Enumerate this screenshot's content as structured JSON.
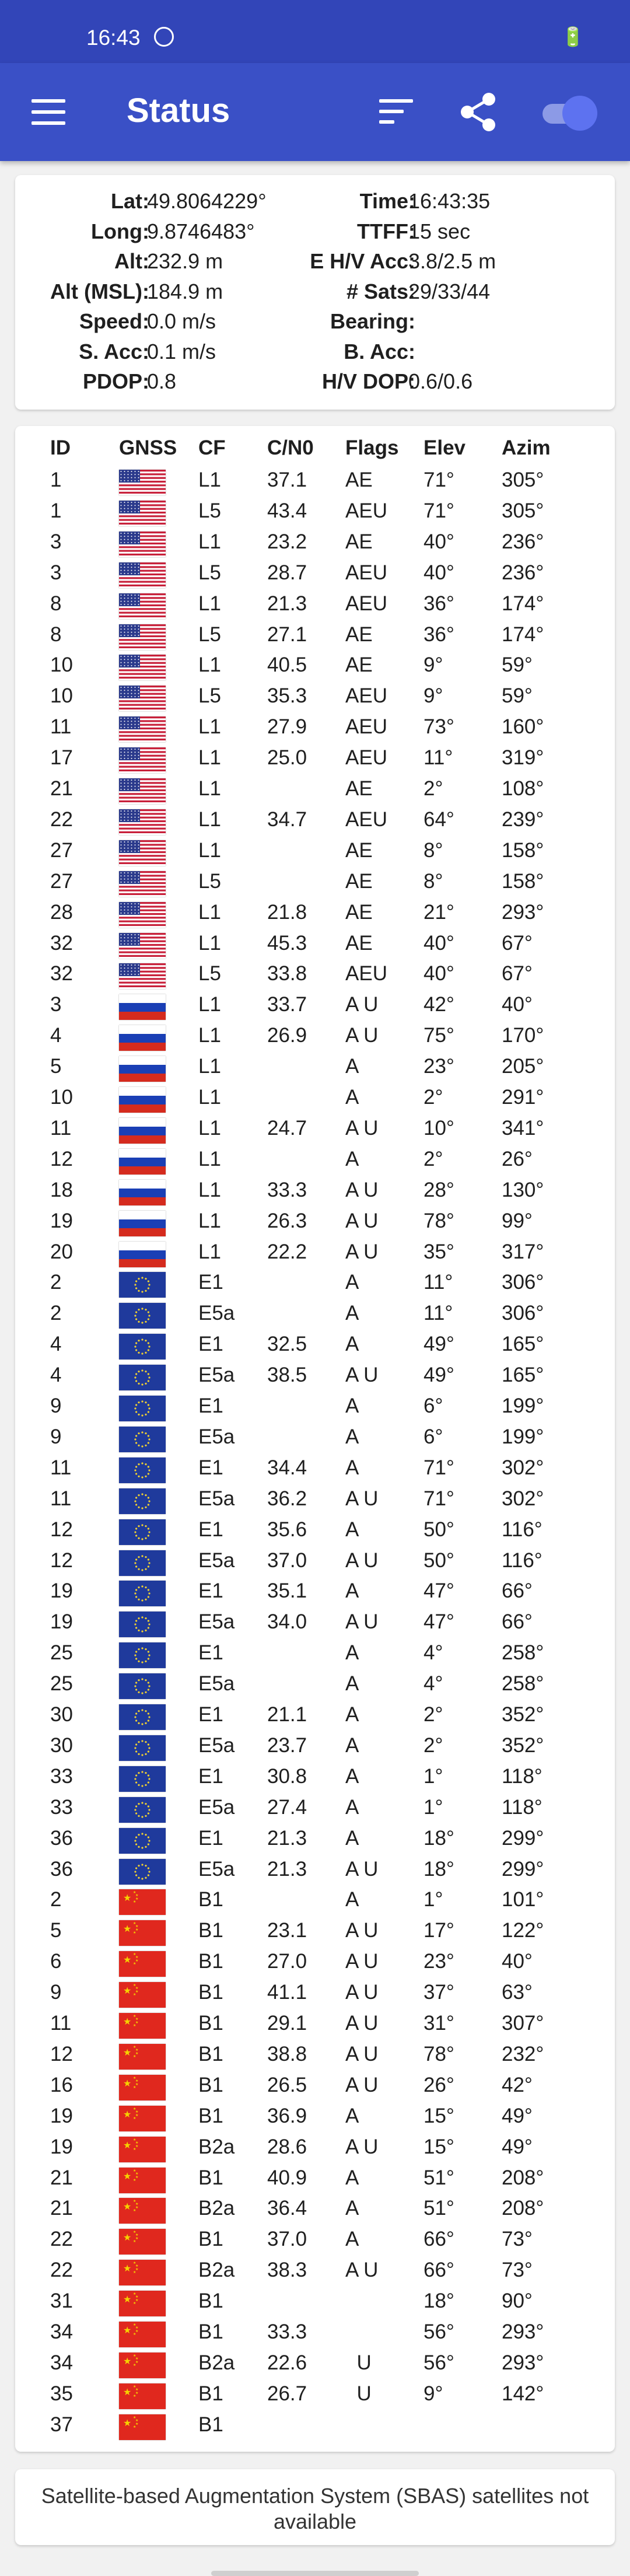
{
  "status_bar": {
    "time": "16:43",
    "battery": "93"
  },
  "app_bar": {
    "title": "Status",
    "toggle_on": true,
    "colors": {
      "bar": "#3a50c6",
      "status": "#3245b8",
      "toggle": "#5d72f0"
    }
  },
  "fix": {
    "rows": [
      {
        "label1": "Lat:",
        "value1": "49.8064229°",
        "label2": "Time:",
        "value2": "16:43:35"
      },
      {
        "label1": "Long:",
        "value1": "9.8746483°",
        "label2": "TTFF:",
        "value2": "15 sec"
      },
      {
        "label1": "Alt:",
        "value1": "232.9 m",
        "label2": "E H/V Acc:",
        "value2": "3.8/2.5 m"
      },
      {
        "label1": "Alt (MSL):",
        "value1": "184.9 m",
        "label2": "# Sats:",
        "value2": "29/33/44"
      },
      {
        "label1": "Speed:",
        "value1": "0.0 m/s",
        "label2": "Bearing:",
        "value2": ""
      },
      {
        "label1": "S. Acc:",
        "value1": "0.1 m/s",
        "label2": "B. Acc:",
        "value2": ""
      },
      {
        "label1": "PDOP:",
        "value1": "0.8",
        "label2": "H/V DOP:",
        "value2": "0.6/0.6"
      }
    ]
  },
  "satellites": {
    "headers": {
      "id": "ID",
      "gnss": "GNSS",
      "cf": "CF",
      "cn0": "C/N0",
      "flags": "Flags",
      "elev": "Elev",
      "azim": "Azim"
    },
    "rows": [
      {
        "id": "1",
        "gnss": "us-flag-icon",
        "cf": "L1",
        "cn0": "37.1",
        "flags": "AE",
        "elev": "71°",
        "azim": "305°"
      },
      {
        "id": "1",
        "gnss": "us-flag-icon",
        "cf": "L5",
        "cn0": "43.4",
        "flags": "AEU",
        "elev": "71°",
        "azim": "305°"
      },
      {
        "id": "3",
        "gnss": "us-flag-icon",
        "cf": "L1",
        "cn0": "23.2",
        "flags": "AE",
        "elev": "40°",
        "azim": "236°"
      },
      {
        "id": "3",
        "gnss": "us-flag-icon",
        "cf": "L5",
        "cn0": "28.7",
        "flags": "AEU",
        "elev": "40°",
        "azim": "236°"
      },
      {
        "id": "8",
        "gnss": "us-flag-icon",
        "cf": "L1",
        "cn0": "21.3",
        "flags": "AEU",
        "elev": "36°",
        "azim": "174°"
      },
      {
        "id": "8",
        "gnss": "us-flag-icon",
        "cf": "L5",
        "cn0": "27.1",
        "flags": "AE",
        "elev": "36°",
        "azim": "174°"
      },
      {
        "id": "10",
        "gnss": "us-flag-icon",
        "cf": "L1",
        "cn0": "40.5",
        "flags": "AE",
        "elev": "9°",
        "azim": "59°"
      },
      {
        "id": "10",
        "gnss": "us-flag-icon",
        "cf": "L5",
        "cn0": "35.3",
        "flags": "AEU",
        "elev": "9°",
        "azim": "59°"
      },
      {
        "id": "11",
        "gnss": "us-flag-icon",
        "cf": "L1",
        "cn0": "27.9",
        "flags": "AEU",
        "elev": "73°",
        "azim": "160°"
      },
      {
        "id": "17",
        "gnss": "us-flag-icon",
        "cf": "L1",
        "cn0": "25.0",
        "flags": "AEU",
        "elev": "11°",
        "azim": "319°"
      },
      {
        "id": "21",
        "gnss": "us-flag-icon",
        "cf": "L1",
        "cn0": "",
        "flags": "AE",
        "elev": "2°",
        "azim": "108°"
      },
      {
        "id": "22",
        "gnss": "us-flag-icon",
        "cf": "L1",
        "cn0": "34.7",
        "flags": "AEU",
        "elev": "64°",
        "azim": "239°"
      },
      {
        "id": "27",
        "gnss": "us-flag-icon",
        "cf": "L1",
        "cn0": "",
        "flags": "AE",
        "elev": "8°",
        "azim": "158°"
      },
      {
        "id": "27",
        "gnss": "us-flag-icon",
        "cf": "L5",
        "cn0": "",
        "flags": "AE",
        "elev": "8°",
        "azim": "158°"
      },
      {
        "id": "28",
        "gnss": "us-flag-icon",
        "cf": "L1",
        "cn0": "21.8",
        "flags": "AE",
        "elev": "21°",
        "azim": "293°"
      },
      {
        "id": "32",
        "gnss": "us-flag-icon",
        "cf": "L1",
        "cn0": "45.3",
        "flags": "AE",
        "elev": "40°",
        "azim": "67°"
      },
      {
        "id": "32",
        "gnss": "us-flag-icon",
        "cf": "L5",
        "cn0": "33.8",
        "flags": "AEU",
        "elev": "40°",
        "azim": "67°"
      },
      {
        "id": "3",
        "gnss": "russia-flag-icon",
        "cf": "L1",
        "cn0": "33.7",
        "flags": "A U",
        "elev": "42°",
        "azim": "40°"
      },
      {
        "id": "4",
        "gnss": "russia-flag-icon",
        "cf": "L1",
        "cn0": "26.9",
        "flags": "A U",
        "elev": "75°",
        "azim": "170°"
      },
      {
        "id": "5",
        "gnss": "russia-flag-icon",
        "cf": "L1",
        "cn0": "",
        "flags": "A",
        "elev": "23°",
        "azim": "205°"
      },
      {
        "id": "10",
        "gnss": "russia-flag-icon",
        "cf": "L1",
        "cn0": "",
        "flags": "A",
        "elev": "2°",
        "azim": "291°"
      },
      {
        "id": "11",
        "gnss": "russia-flag-icon",
        "cf": "L1",
        "cn0": "24.7",
        "flags": "A U",
        "elev": "10°",
        "azim": "341°"
      },
      {
        "id": "12",
        "gnss": "russia-flag-icon",
        "cf": "L1",
        "cn0": "",
        "flags": "A",
        "elev": "2°",
        "azim": "26°"
      },
      {
        "id": "18",
        "gnss": "russia-flag-icon",
        "cf": "L1",
        "cn0": "33.3",
        "flags": "A U",
        "elev": "28°",
        "azim": "130°"
      },
      {
        "id": "19",
        "gnss": "russia-flag-icon",
        "cf": "L1",
        "cn0": "26.3",
        "flags": "A U",
        "elev": "78°",
        "azim": "99°"
      },
      {
        "id": "20",
        "gnss": "russia-flag-icon",
        "cf": "L1",
        "cn0": "22.2",
        "flags": "A U",
        "elev": "35°",
        "azim": "317°"
      },
      {
        "id": "2",
        "gnss": "eu-flag-icon",
        "cf": "E1",
        "cn0": "",
        "flags": "A",
        "elev": "11°",
        "azim": "306°"
      },
      {
        "id": "2",
        "gnss": "eu-flag-icon",
        "cf": "E5a",
        "cn0": "",
        "flags": "A",
        "elev": "11°",
        "azim": "306°"
      },
      {
        "id": "4",
        "gnss": "eu-flag-icon",
        "cf": "E1",
        "cn0": "32.5",
        "flags": "A",
        "elev": "49°",
        "azim": "165°"
      },
      {
        "id": "4",
        "gnss": "eu-flag-icon",
        "cf": "E5a",
        "cn0": "38.5",
        "flags": "A U",
        "elev": "49°",
        "azim": "165°"
      },
      {
        "id": "9",
        "gnss": "eu-flag-icon",
        "cf": "E1",
        "cn0": "",
        "flags": "A",
        "elev": "6°",
        "azim": "199°"
      },
      {
        "id": "9",
        "gnss": "eu-flag-icon",
        "cf": "E5a",
        "cn0": "",
        "flags": "A",
        "elev": "6°",
        "azim": "199°"
      },
      {
        "id": "11",
        "gnss": "eu-flag-icon",
        "cf": "E1",
        "cn0": "34.4",
        "flags": "A",
        "elev": "71°",
        "azim": "302°"
      },
      {
        "id": "11",
        "gnss": "eu-flag-icon",
        "cf": "E5a",
        "cn0": "36.2",
        "flags": "A U",
        "elev": "71°",
        "azim": "302°"
      },
      {
        "id": "12",
        "gnss": "eu-flag-icon",
        "cf": "E1",
        "cn0": "35.6",
        "flags": "A",
        "elev": "50°",
        "azim": "116°"
      },
      {
        "id": "12",
        "gnss": "eu-flag-icon",
        "cf": "E5a",
        "cn0": "37.0",
        "flags": "A U",
        "elev": "50°",
        "azim": "116°"
      },
      {
        "id": "19",
        "gnss": "eu-flag-icon",
        "cf": "E1",
        "cn0": "35.1",
        "flags": "A",
        "elev": "47°",
        "azim": "66°"
      },
      {
        "id": "19",
        "gnss": "eu-flag-icon",
        "cf": "E5a",
        "cn0": "34.0",
        "flags": "A U",
        "elev": "47°",
        "azim": "66°"
      },
      {
        "id": "25",
        "gnss": "eu-flag-icon",
        "cf": "E1",
        "cn0": "",
        "flags": "A",
        "elev": "4°",
        "azim": "258°"
      },
      {
        "id": "25",
        "gnss": "eu-flag-icon",
        "cf": "E5a",
        "cn0": "",
        "flags": "A",
        "elev": "4°",
        "azim": "258°"
      },
      {
        "id": "30",
        "gnss": "eu-flag-icon",
        "cf": "E1",
        "cn0": "21.1",
        "flags": "A",
        "elev": "2°",
        "azim": "352°"
      },
      {
        "id": "30",
        "gnss": "eu-flag-icon",
        "cf": "E5a",
        "cn0": "23.7",
        "flags": "A",
        "elev": "2°",
        "azim": "352°"
      },
      {
        "id": "33",
        "gnss": "eu-flag-icon",
        "cf": "E1",
        "cn0": "30.8",
        "flags": "A",
        "elev": "1°",
        "azim": "118°"
      },
      {
        "id": "33",
        "gnss": "eu-flag-icon",
        "cf": "E5a",
        "cn0": "27.4",
        "flags": "A",
        "elev": "1°",
        "azim": "118°"
      },
      {
        "id": "36",
        "gnss": "eu-flag-icon",
        "cf": "E1",
        "cn0": "21.3",
        "flags": "A",
        "elev": "18°",
        "azim": "299°"
      },
      {
        "id": "36",
        "gnss": "eu-flag-icon",
        "cf": "E5a",
        "cn0": "21.3",
        "flags": "A U",
        "elev": "18°",
        "azim": "299°"
      },
      {
        "id": "2",
        "gnss": "china-flag-icon",
        "cf": "B1",
        "cn0": "",
        "flags": "A",
        "elev": "1°",
        "azim": "101°"
      },
      {
        "id": "5",
        "gnss": "china-flag-icon",
        "cf": "B1",
        "cn0": "23.1",
        "flags": "A U",
        "elev": "17°",
        "azim": "122°"
      },
      {
        "id": "6",
        "gnss": "china-flag-icon",
        "cf": "B1",
        "cn0": "27.0",
        "flags": "A U",
        "elev": "23°",
        "azim": "40°"
      },
      {
        "id": "9",
        "gnss": "china-flag-icon",
        "cf": "B1",
        "cn0": "41.1",
        "flags": "A U",
        "elev": "37°",
        "azim": "63°"
      },
      {
        "id": "11",
        "gnss": "china-flag-icon",
        "cf": "B1",
        "cn0": "29.1",
        "flags": "A U",
        "elev": "31°",
        "azim": "307°"
      },
      {
        "id": "12",
        "gnss": "china-flag-icon",
        "cf": "B1",
        "cn0": "38.8",
        "flags": "A U",
        "elev": "78°",
        "azim": "232°"
      },
      {
        "id": "16",
        "gnss": "china-flag-icon",
        "cf": "B1",
        "cn0": "26.5",
        "flags": "A U",
        "elev": "26°",
        "azim": "42°"
      },
      {
        "id": "19",
        "gnss": "china-flag-icon",
        "cf": "B1",
        "cn0": "36.9",
        "flags": "A",
        "elev": "15°",
        "azim": "49°"
      },
      {
        "id": "19",
        "gnss": "china-flag-icon",
        "cf": "B2a",
        "cn0": "28.6",
        "flags": "A U",
        "elev": "15°",
        "azim": "49°"
      },
      {
        "id": "21",
        "gnss": "china-flag-icon",
        "cf": "B1",
        "cn0": "40.9",
        "flags": "A",
        "elev": "51°",
        "azim": "208°"
      },
      {
        "id": "21",
        "gnss": "china-flag-icon",
        "cf": "B2a",
        "cn0": "36.4",
        "flags": "A",
        "elev": "51°",
        "azim": "208°"
      },
      {
        "id": "22",
        "gnss": "china-flag-icon",
        "cf": "B1",
        "cn0": "37.0",
        "flags": "A",
        "elev": "66°",
        "azim": "73°"
      },
      {
        "id": "22",
        "gnss": "china-flag-icon",
        "cf": "B2a",
        "cn0": "38.3",
        "flags": "A U",
        "elev": "66°",
        "azim": "73°"
      },
      {
        "id": "31",
        "gnss": "china-flag-icon",
        "cf": "B1",
        "cn0": "",
        "flags": "",
        "elev": "18°",
        "azim": "90°"
      },
      {
        "id": "34",
        "gnss": "china-flag-icon",
        "cf": "B1",
        "cn0": "33.3",
        "flags": "",
        "elev": "56°",
        "azim": "293°"
      },
      {
        "id": "34",
        "gnss": "china-flag-icon",
        "cf": "B2a",
        "cn0": "22.6",
        "flags": "  U",
        "elev": "56°",
        "azim": "293°"
      },
      {
        "id": "35",
        "gnss": "china-flag-icon",
        "cf": "B1",
        "cn0": "26.7",
        "flags": "  U",
        "elev": "9°",
        "azim": "142°"
      },
      {
        "id": "37",
        "gnss": "china-flag-icon",
        "cf": "B1",
        "cn0": "",
        "flags": "",
        "elev": "",
        "azim": ""
      }
    ]
  },
  "sbas": {
    "message": "Satellite-based Augmentation System (SBAS) satellites not available"
  }
}
